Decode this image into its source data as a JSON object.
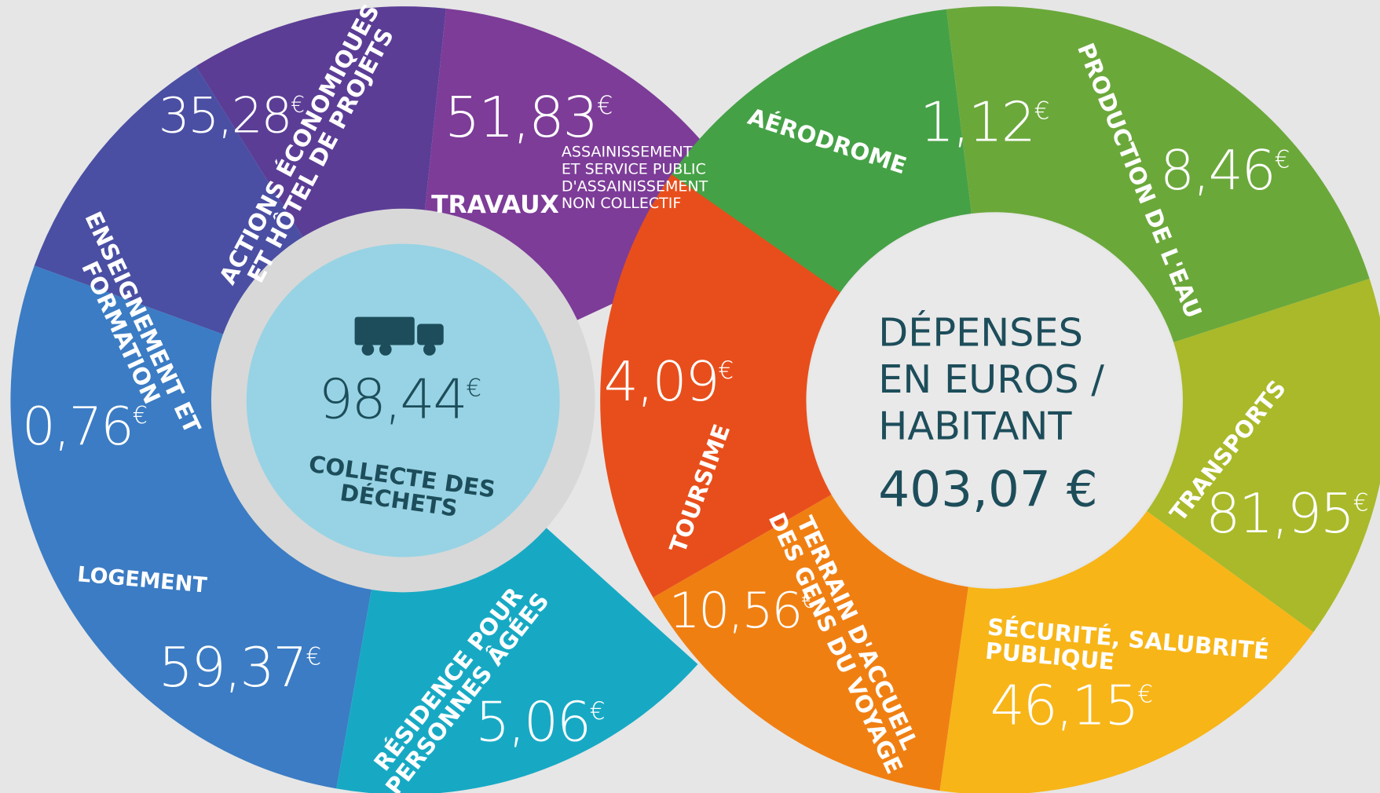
{
  "center": {
    "title": [
      "DÉPENSES",
      "EN EUROS /",
      "HABITANT"
    ],
    "total": "403,07 €"
  },
  "segments": [
    {
      "label": [
        "COLLECTE DES",
        "DÉCHETS"
      ],
      "amount": "98,44",
      "unit": "€"
    },
    {
      "label": [
        "ACTIONS ÉCONOMIQUES",
        "ET HÔTEL DE PROJETS"
      ],
      "amount": "35,28",
      "unit": "€"
    },
    {
      "label": [
        "TRAVAUX"
      ],
      "sublabel": [
        "ASSAINISSEMENT",
        "ET SERVICE PUBLIC",
        "D'ASSAINISSEMENT",
        "NON COLLECTIF"
      ],
      "amount": "51,83",
      "unit": "€"
    },
    {
      "label": [
        "ENSEIGNEMENT ET",
        "FORMATION"
      ],
      "amount": "0,76",
      "unit": "€"
    },
    {
      "label": [
        "LOGEMENT"
      ],
      "amount": "59,37",
      "unit": "€"
    },
    {
      "label": [
        "RÉSIDENCE POUR",
        "PERSONNES ÂGÉES"
      ],
      "amount": "5,06",
      "unit": "€"
    },
    {
      "label": [
        "AÉRODROME"
      ],
      "amount": "1,12",
      "unit": "€"
    },
    {
      "label": [
        "PRODUCTION DE L'EAU"
      ],
      "amount": "8,46",
      "unit": "€"
    },
    {
      "label": [
        "TRANSPORTS"
      ],
      "amount": "81,95",
      "unit": "€"
    },
    {
      "label": [
        "SÉCURITÉ, SALUBRITÉ",
        "PUBLIQUE"
      ],
      "amount": "46,15",
      "unit": "€"
    },
    {
      "label": [
        "TERRAIN D'ACCUEIL",
        "DES GENS DU VOYAGE"
      ],
      "amount": "10,56",
      "unit": "€"
    },
    {
      "label": [
        "TOURSIME"
      ],
      "amount": "4,09",
      "unit": "€"
    }
  ]
}
